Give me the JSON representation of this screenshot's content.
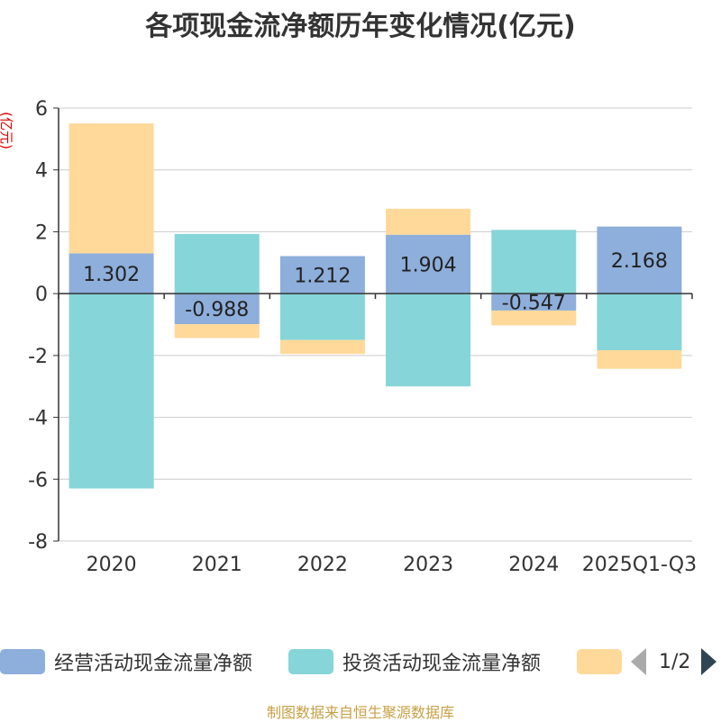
{
  "chart_data": {
    "type": "bar",
    "stacked": true,
    "title": "各项现金流净额历年变化情况(亿元)",
    "ylabel": "(亿元)",
    "xlabel": "",
    "ylim": [
      -8,
      6
    ],
    "yticks": [
      6,
      4,
      2,
      0,
      -2,
      -4,
      -6,
      -8
    ],
    "grid": true,
    "categories": [
      "2020",
      "2021",
      "2022",
      "2023",
      "2024",
      "2025Q1-Q3"
    ],
    "series": [
      {
        "name": "经营活动现金流量净额",
        "color": "#8eaedb",
        "values": [
          1.302,
          -0.988,
          1.212,
          1.904,
          -0.547,
          2.168
        ],
        "labels": [
          "1.302",
          "-0.988",
          "1.212",
          "1.904",
          "-0.547",
          "2.168"
        ]
      },
      {
        "name": "投资活动现金流量净额",
        "color": "#86d5d8",
        "values": [
          -6.3,
          1.93,
          -1.5,
          -3.0,
          2.06,
          -1.83
        ]
      },
      {
        "name": "",
        "color": "#ffd99a",
        "values": [
          4.2,
          -0.45,
          -0.45,
          0.84,
          -0.48,
          -0.6
        ]
      }
    ],
    "legend_position": "bottom",
    "legend_page": "1/2",
    "source": "制图数据来自恒生聚源数据库"
  }
}
